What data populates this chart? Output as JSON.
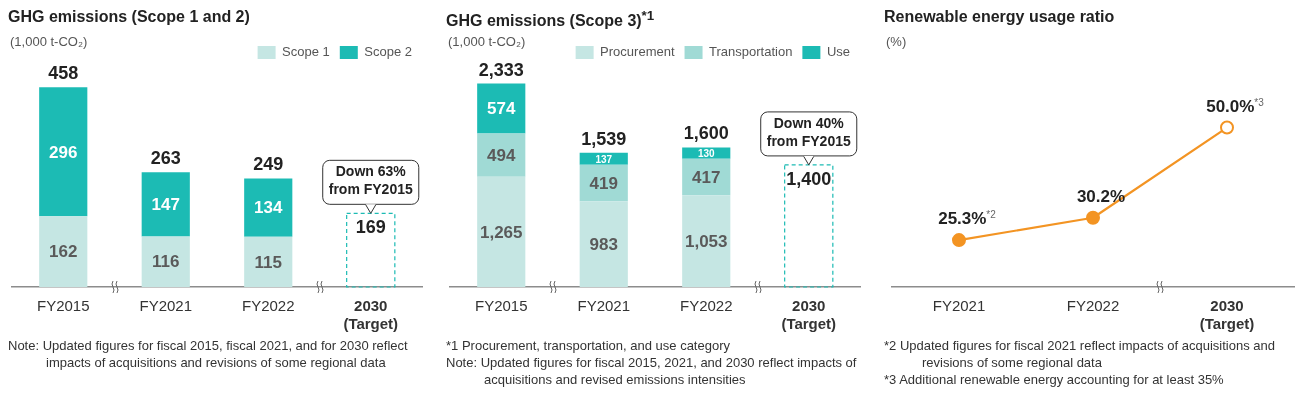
{
  "chart_data": [
    {
      "type": "bar",
      "title": "GHG emissions (Scope 1 and 2)",
      "ylabel": "(1,000 t-CO₂)",
      "categories": [
        "FY2015",
        "FY2021",
        "FY2022",
        "2030\n(Target)"
      ],
      "stacked": true,
      "legend": "top right",
      "tick_labels": "x",
      "data_labels": true,
      "series": [
        {
          "name": "Scope 1",
          "color": "#c5e6e3",
          "values": [
            162,
            116,
            115,
            null
          ]
        },
        {
          "name": "Scope 2",
          "color": "#1cbbb4",
          "values": [
            296,
            147,
            134,
            null
          ]
        },
        {
          "color": "#1cbbb4",
          "line_style": "dashed",
          "values": [
            null,
            null,
            null,
            169
          ]
        }
      ],
      "totals": [
        "458",
        "263",
        "249",
        null
      ],
      "annotations": [
        {
          "text": "Down 63%\nfrom FY2015",
          "x": "2030\n(Target)",
          "y": 169
        },
        "Note: Updated figures for fiscal 2015, fiscal 2021, and for 2030 reflect impacts of acquisitions and revisions of some regional data"
      ]
    },
    {
      "type": "bar",
      "title": "GHG emissions (Scope 3)$^{*1}$",
      "ylabel": "(1,000 t-CO₂)",
      "categories": [
        "FY2015",
        "FY2021",
        "FY2022",
        "2030\n(Target)"
      ],
      "stacked": true,
      "legend": "top right",
      "tick_labels": "x",
      "data_labels": true,
      "series": [
        {
          "name": "Procurement",
          "color": "#c5e6e3",
          "values": [
            1265,
            983,
            1053,
            null
          ],
          "value_labels": [
            "1,265",
            "983",
            "1,053",
            null
          ]
        },
        {
          "name": "Transportation",
          "color": "#a0dad5",
          "values": [
            494,
            419,
            417,
            null
          ]
        },
        {
          "name": "Use",
          "color": "#1cbbb4",
          "values": [
            574,
            137,
            130,
            null
          ]
        },
        {
          "color": "#1cbbb4",
          "line_style": "dashed",
          "values": [
            null,
            null,
            null,
            1400
          ],
          "value_labels": [
            null,
            null,
            null,
            "1,400"
          ]
        }
      ],
      "totals": [
        "2,333",
        "1,539",
        "1,600",
        null
      ],
      "annotations": [
        {
          "text": "Down 40%\nfrom FY2015",
          "x": "2030\n(Target)",
          "y": 1400
        },
        "*1 Procurement, transportation, and use category",
        "Note: Updated figures for fiscal 2015, 2021, and 2030 reflect impacts of acquisitions and revised emissions intensities"
      ]
    },
    {
      "type": "line",
      "title": "Renewable energy usage ratio",
      "ylabel": "(%)",
      "categories": [
        "FY2021",
        "FY2022",
        "2030\n(Target)"
      ],
      "tick_labels": "x",
      "marker": "circle",
      "line_style": "solid",
      "series": [
        {
          "color": "#f39423",
          "values": [
            25.3,
            30.2,
            50.0
          ],
          "value_labels": [
            "25.3%$^{*2}$",
            "30.2%",
            "50.0%$^{*3}$"
          ]
        }
      ],
      "annotations": [
        "*2 Updated figures for fiscal 2021 reflect impacts of acquisitions and revisions of some regional data",
        "*3 Additional renewable energy accounting for at least 35%"
      ]
    }
  ]
}
